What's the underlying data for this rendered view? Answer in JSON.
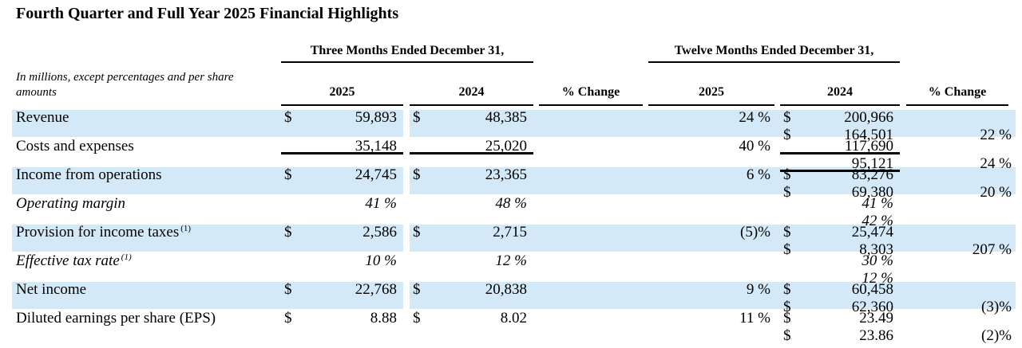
{
  "title": "Fourth Quarter and Full Year 2025 Financial Highlights",
  "colors": {
    "highlight_row": "#d3e9f7",
    "text": "#000000",
    "rule": "#000000"
  },
  "table": {
    "note": "In millions, except percentages and per share amounts",
    "group_headers": {
      "three_months": "Three Months Ended December 31,",
      "twelve_months": "Twelve Months Ended December 31,"
    },
    "col_headers": {
      "q4_2025": "2025",
      "q4_2024": "2024",
      "q4_change": "% Change",
      "fy_2025": "2025",
      "fy_2024": "2024",
      "fy_change": "% Change"
    },
    "rows": [
      {
        "label": "Revenue",
        "sup": "",
        "cur1": "$",
        "v1": "59,893",
        "cur2": "$",
        "v2": "48,385",
        "p1": "24 %",
        "cur3": "$",
        "v3": "200,966",
        "cur4": "$",
        "v4": "164,501",
        "p2": "22 %"
      },
      {
        "label": "Costs and expenses",
        "sup": "",
        "cur1": "",
        "v1": "35,148",
        "cur2": "",
        "v2": "25,020",
        "p1": "40 %",
        "cur3": "",
        "v3": "117,690",
        "cur4": "",
        "v4": "95,121",
        "p2": "24 %"
      },
      {
        "label": "Income from operations",
        "sup": "",
        "cur1": "$",
        "v1": "24,745",
        "cur2": "$",
        "v2": "23,365",
        "p1": "6 %",
        "cur3": "$",
        "v3": "83,276",
        "cur4": "$",
        "v4": "69,380",
        "p2": "20 %"
      },
      {
        "label": "Operating margin",
        "sup": "",
        "cur1": "",
        "v1": "41 %",
        "cur2": "",
        "v2": "48 %",
        "p1": "",
        "cur3": "",
        "v3": "41 %",
        "cur4": "",
        "v4": "42 %",
        "p2": ""
      },
      {
        "label": "Provision for income taxes",
        "sup": "(1)",
        "cur1": "$",
        "v1": "2,586",
        "cur2": "$",
        "v2": "2,715",
        "p1": "(5)%",
        "cur3": "$",
        "v3": "25,474",
        "cur4": "$",
        "v4": "8,303",
        "p2": "207 %"
      },
      {
        "label": "Effective tax rate",
        "sup": "(1)",
        "cur1": "",
        "v1": "10 %",
        "cur2": "",
        "v2": "12 %",
        "p1": "",
        "cur3": "",
        "v3": "30 %",
        "cur4": "",
        "v4": "12 %",
        "p2": ""
      },
      {
        "label": "Net income",
        "sup": "",
        "cur1": "$",
        "v1": "22,768",
        "cur2": "$",
        "v2": "20,838",
        "p1": "9 %",
        "cur3": "$",
        "v3": "60,458",
        "cur4": "$",
        "v4": "62,360",
        "p2": "(3)%"
      },
      {
        "label": "Diluted earnings per share (EPS)",
        "sup": "",
        "cur1": "$",
        "v1": "8.88",
        "cur2": "$",
        "v2": "8.02",
        "p1": "11 %",
        "cur3": "$",
        "v3": "23.49",
        "cur4": "$",
        "v4": "23.86",
        "p2": "(2)%"
      }
    ]
  }
}
